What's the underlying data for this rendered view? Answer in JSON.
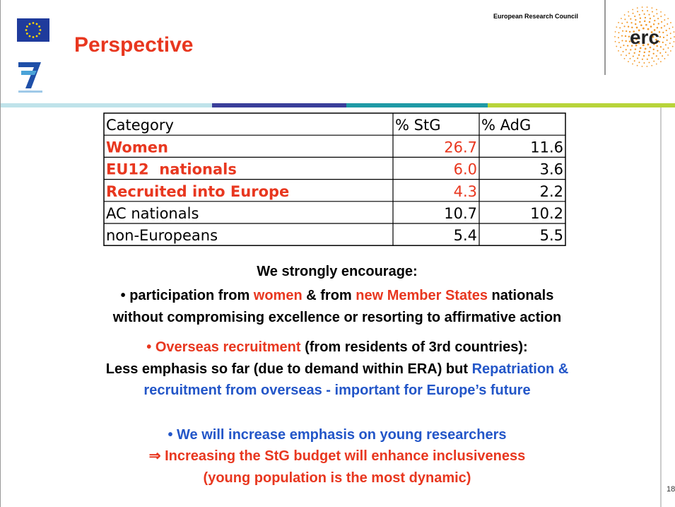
{
  "header": {
    "title": "Perspective",
    "org": "European Research Council",
    "logo": "erc"
  },
  "table": {
    "columns": [
      "Category",
      "% StG",
      "% AdG"
    ],
    "rows": [
      [
        "Women",
        "26.7",
        "11.6"
      ],
      [
        "EU12  nationals",
        "6.0",
        "3.6"
      ],
      [
        "Recruited into Europe",
        "4.3",
        "2.2"
      ],
      [
        "AC nationals",
        "10.7",
        "10.2"
      ],
      [
        "non-Europeans",
        "5.4",
        "5.5"
      ]
    ],
    "row_colors": [
      "#e8371f",
      "#e8371f",
      "#e8371f",
      "#000000",
      "#000000"
    ]
  },
  "lines": [
    [
      {
        "text": "We strongly encourage:",
        "color": "#000000"
      }
    ],
    [
      {
        "text": "• participation from ",
        "color": "#000000"
      },
      {
        "text": "women",
        "color": "#e8371f"
      },
      {
        "text": " & from ",
        "color": "#000000"
      },
      {
        "text": "new Member States",
        "color": "#e8371f"
      },
      {
        "text": " nationals",
        "color": "#000000"
      }
    ],
    [
      {
        "text": "without compromising excellence or resorting to affirmative action",
        "color": "#000000"
      }
    ],
    [
      {
        "text": "• Overseas recruitment",
        "color": "#e8371f"
      },
      {
        "text": " (from residents of 3rd countries):",
        "color": "#000000"
      }
    ],
    [
      {
        "text": "Less emphasis so far (due to demand within ERA) but ",
        "color": "#000000"
      },
      {
        "text": "Repatriation &",
        "color": "#2356c8"
      }
    ],
    [
      {
        "text": "recruitment from overseas - important for Europe’s future",
        "color": "#2356c8"
      }
    ],
    [
      {
        "text": "• We will increase emphasis on young researchers",
        "color": "#2356c8"
      }
    ],
    [
      {
        "text": "⇒ Increasing the StG budget will enhance inclusiveness",
        "color": "#e8371f"
      }
    ],
    [
      {
        "text": "(young population is the most dynamic)",
        "color": "#e8371f"
      }
    ]
  ],
  "page_number": "18"
}
